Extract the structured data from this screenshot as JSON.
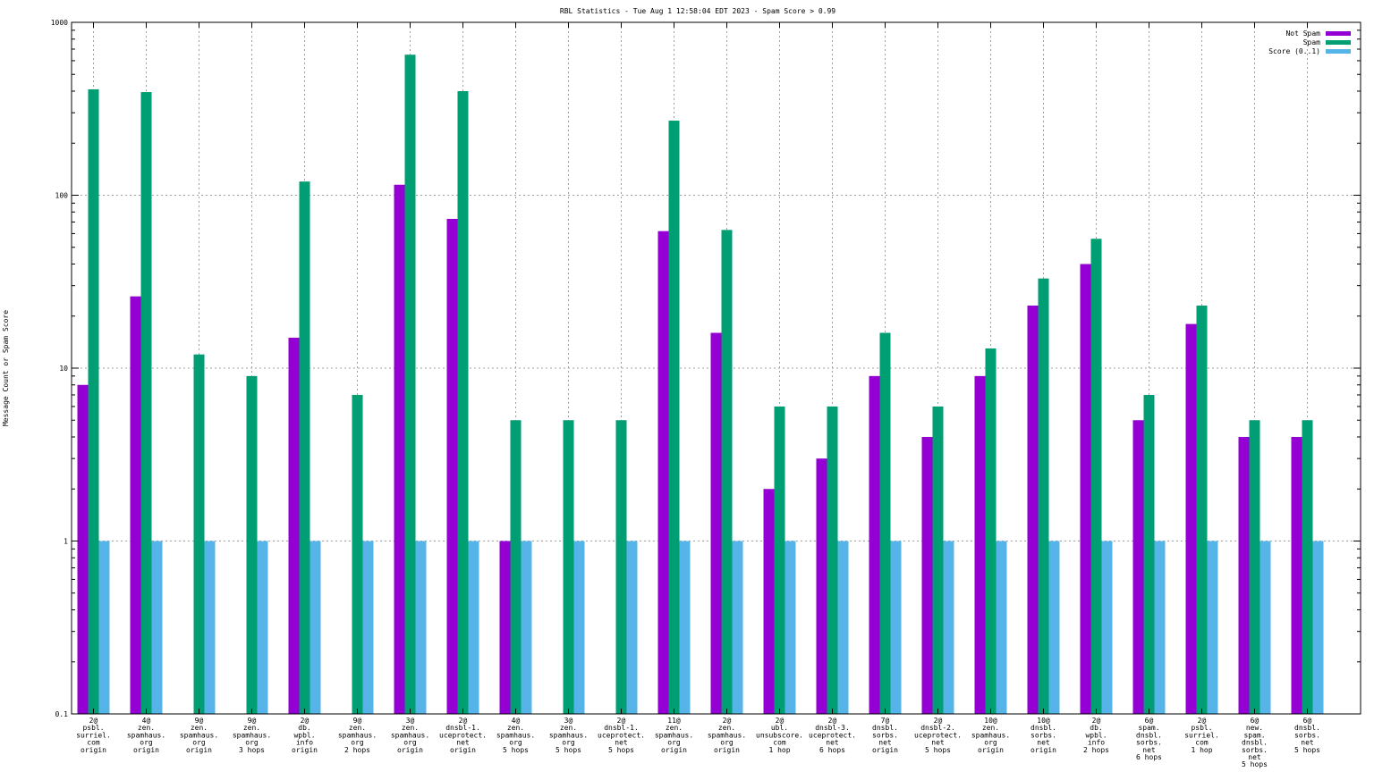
{
  "chart_data": {
    "type": "bar",
    "title": "RBL Statistics - Tue Aug  1 12:58:04 EDT 2023 - Spam Score > 0.99",
    "xlabel": "",
    "ylabel": "Message Count or Spam Score",
    "yscale": "log",
    "ylim": [
      0.1,
      1000
    ],
    "yticks": [
      "0.1",
      "1",
      "10",
      "100",
      "1000"
    ],
    "grid": true,
    "legend_position": "top-right",
    "categories": [
      "2@\npsbl.\nsurriel.\ncom\norigin",
      "4@\nzen.\nspamhaus.\norg\norigin",
      "9@\nzen.\nspamhaus.\norg\norigin",
      "9@\nzen.\nspamhaus.\norg\n3 hops",
      "2@\ndb.\nwpbl.\ninfo\norigin",
      "9@\nzen.\nspamhaus.\norg\n2 hops",
      "3@\nzen.\nspamhaus.\norg\norigin",
      "2@\ndnsbl-1.\nuceprotect.\nnet\norigin",
      "4@\nzen.\nspamhaus.\norg\n5 hops",
      "3@\nzen.\nspamhaus.\norg\n5 hops",
      "2@\ndnsbl-1.\nuceprotect.\nnet\n5 hops",
      "11@\nzen.\nspamhaus.\norg\norigin",
      "2@\nzen.\nspamhaus.\norg\norigin",
      "2@\nubl.\nunsubscore.\ncom\n1 hop",
      "2@\ndnsbl-3.\nuceprotect.\nnet\n6 hops",
      "7@\ndnsbl.\nsorbs.\nnet\norigin",
      "2@\ndnsbl-2.\nuceprotect.\nnet\n5 hops",
      "10@\nzen.\nspamhaus.\norg\norigin",
      "10@\ndnsbl.\nsorbs.\nnet\norigin",
      "2@\ndb.\nwpbl.\ninfo\n2 hops",
      "6@\nspam.\ndnsbl.\nsorbs.\nnet\n6 hops",
      "2@\npsbl.\nsurriel.\ncom\n1 hop",
      "6@\nnew.\nspam.\ndnsbl.\nsorbs.\nnet\n5 hops",
      "6@\ndnsbl.\nsorbs.\nnet\n5 hops"
    ],
    "series": [
      {
        "name": "Not Spam",
        "color": "#9400d3",
        "values": [
          8,
          26,
          null,
          null,
          15,
          null,
          115,
          73,
          1,
          null,
          null,
          62,
          16,
          2,
          3,
          9,
          4,
          9,
          23,
          40,
          5,
          18,
          4,
          4
        ]
      },
      {
        "name": "Spam",
        "color": "#009e73",
        "values": [
          410,
          395,
          12,
          9,
          120,
          7,
          650,
          400,
          5,
          5,
          5,
          270,
          63,
          6,
          6,
          16,
          6,
          13,
          33,
          56,
          7,
          23,
          5,
          5
        ]
      },
      {
        "name": "Score (0..1)",
        "color": "#56b4e9",
        "values": [
          1,
          1,
          1,
          1,
          1,
          1,
          1,
          1,
          1,
          1,
          1,
          1,
          1,
          1,
          1,
          1,
          1,
          1,
          1,
          1,
          1,
          1,
          1,
          1
        ]
      }
    ]
  }
}
